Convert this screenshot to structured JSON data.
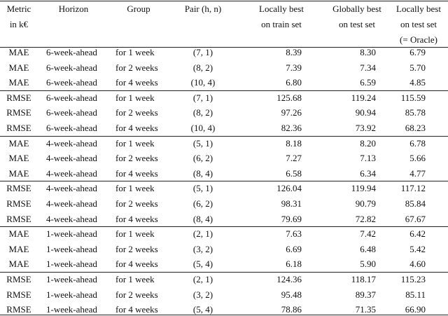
{
  "table": {
    "header": [
      [
        "Metric",
        "in k€"
      ],
      [
        "Horizon"
      ],
      [
        "Group"
      ],
      [
        "Pair (h, n)"
      ],
      [
        "Locally best",
        "on train set"
      ],
      [
        "Globally best",
        "on test set"
      ],
      [
        "Locally best",
        "on test set",
        "(= Oracle)"
      ]
    ],
    "rows": [
      [
        "MAE",
        "6-week-ahead",
        "for 1 week",
        "(7, 1)",
        "8.39",
        "8.30",
        "6.79"
      ],
      [
        "MAE",
        "6-week-ahead",
        "for 2 weeks",
        "(8, 2)",
        "7.39",
        "7.34",
        "5.70"
      ],
      [
        "MAE",
        "6-week-ahead",
        "for 4 weeks",
        "(10, 4)",
        "6.80",
        "6.59",
        "4.85"
      ],
      [
        "RMSE",
        "6-week-ahead",
        "for 1 week",
        "(7, 1)",
        "125.68",
        "119.24",
        "115.59"
      ],
      [
        "RMSE",
        "6-week-ahead",
        "for 2 weeks",
        "(8, 2)",
        "97.26",
        "90.94",
        "85.78"
      ],
      [
        "RMSE",
        "6-week-ahead",
        "for 4 weeks",
        "(10, 4)",
        "82.36",
        "73.92",
        "68.23"
      ],
      [
        "MAE",
        "4-week-ahead",
        "for 1 week",
        "(5, 1)",
        "8.18",
        "8.20",
        "6.78"
      ],
      [
        "MAE",
        "4-week-ahead",
        "for 2 weeks",
        "(6, 2)",
        "7.27",
        "7.13",
        "5.66"
      ],
      [
        "MAE",
        "4-week-ahead",
        "for 4 weeks",
        "(8, 4)",
        "6.58",
        "6.34",
        "4.77"
      ],
      [
        "RMSE",
        "4-week-ahead",
        "for 1 week",
        "(5, 1)",
        "126.04",
        "119.94",
        "117.12"
      ],
      [
        "RMSE",
        "4-week-ahead",
        "for 2 weeks",
        "(6, 2)",
        "98.31",
        "90.79",
        "85.84"
      ],
      [
        "RMSE",
        "4-week-ahead",
        "for 4 weeks",
        "(8, 4)",
        "79.69",
        "72.82",
        "67.67"
      ],
      [
        "MAE",
        "1-week-ahead",
        "for 1 week",
        "(2, 1)",
        "7.63",
        "7.42",
        "6.42"
      ],
      [
        "MAE",
        "1-week-ahead",
        "for 2 weeks",
        "(3, 2)",
        "6.69",
        "6.48",
        "5.42"
      ],
      [
        "MAE",
        "1-week-ahead",
        "for 4 weeks",
        "(5, 4)",
        "6.18",
        "5.90",
        "4.60"
      ],
      [
        "RMSE",
        "1-week-ahead",
        "for 1 week",
        "(2, 1)",
        "124.36",
        "118.17",
        "115.23"
      ],
      [
        "RMSE",
        "1-week-ahead",
        "for 2 weeks",
        "(3, 2)",
        "95.48",
        "89.37",
        "85.11"
      ],
      [
        "RMSE",
        "1-week-ahead",
        "for 4 weeks",
        "(5, 4)",
        "78.86",
        "71.35",
        "66.90"
      ]
    ]
  }
}
